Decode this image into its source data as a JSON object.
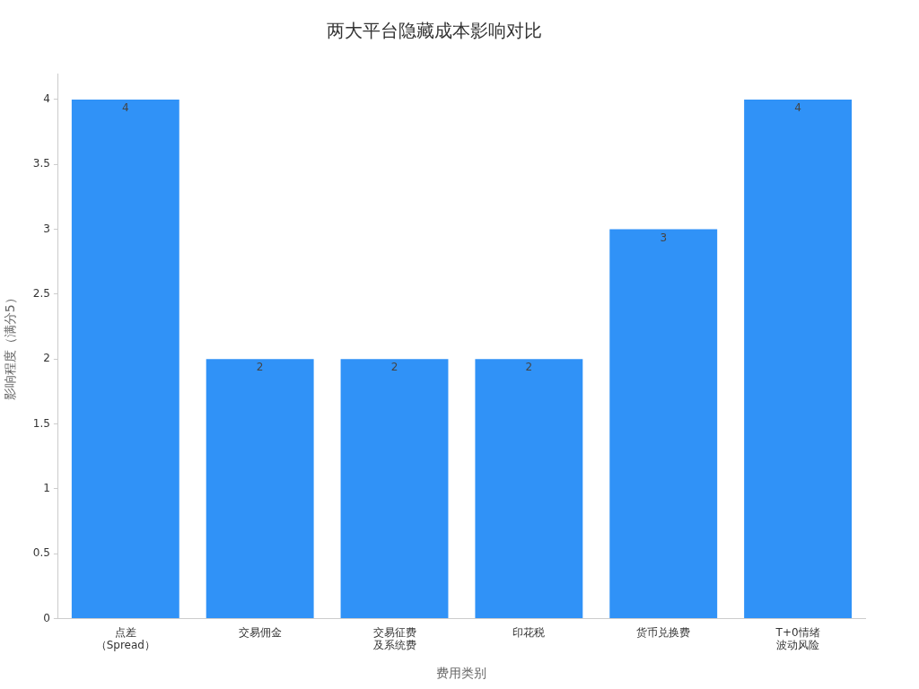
{
  "chart_data": {
    "type": "bar",
    "title": "两大平台隐藏成本影响对比",
    "xlabel": "费用类别",
    "ylabel": "影响程度（满分5）",
    "categories": [
      "点差（Spread）",
      "交易佣金",
      "交易征费及系统费",
      "印花税",
      "货币兑换费",
      "T+0情绪波动风险"
    ],
    "values": [
      4,
      2,
      2,
      2,
      3,
      4
    ],
    "color": "#3092f7",
    "ylim": [
      0,
      4.2
    ],
    "yticks": [
      0,
      0.5,
      1,
      1.5,
      2,
      2.5,
      3,
      3.5,
      4
    ],
    "data_labels": true,
    "grid": false,
    "legend": false
  }
}
